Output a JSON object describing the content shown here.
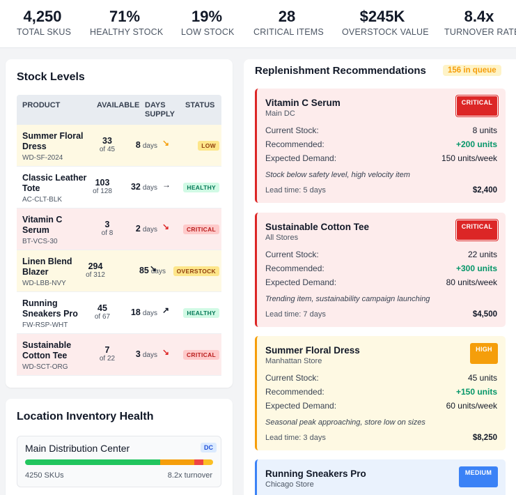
{
  "kpis": [
    {
      "value": "4,250",
      "label": "TOTAL SKUS"
    },
    {
      "value": "71%",
      "label": "HEALTHY STOCK"
    },
    {
      "value": "19%",
      "label": "LOW STOCK"
    },
    {
      "value": "28",
      "label": "CRITICAL ITEMS"
    },
    {
      "value": "$245K",
      "label": "OVERSTOCK VALUE"
    },
    {
      "value": "8.4x",
      "label": "TURNOVER RATE"
    }
  ],
  "stock_levels": {
    "title": "Stock Levels",
    "headers": {
      "product": "PRODUCT",
      "available": "AVAILABLE",
      "days_supply_1": "DAYS",
      "days_supply_2": "SUPPLY",
      "status": "STATUS"
    },
    "rows": [
      {
        "name": "Summer Floral Dress",
        "sku": "WD-SF-2024",
        "available": "33",
        "of": "of 45",
        "days": "8",
        "days_unit": "days",
        "trend": "↘",
        "status": "LOW",
        "status_key": "low",
        "trend_color": "#f59e0b"
      },
      {
        "name": "Classic Leather Tote",
        "sku": "AC-CLT-BLK",
        "available": "103",
        "of": "of 128",
        "days": "32",
        "days_unit": "days",
        "trend": "→",
        "status": "HEALTHY",
        "status_key": "healthy",
        "trend_color": "#111827"
      },
      {
        "name": "Vitamin C Serum",
        "sku": "BT-VCS-30",
        "available": "3",
        "of": "of 8",
        "days": "2",
        "days_unit": "days",
        "trend": "↘",
        "status": "CRITICAL",
        "status_key": "critical",
        "trend_color": "#dc2626"
      },
      {
        "name": "Linen Blend Blazer",
        "sku": "WD-LBB-NVY",
        "available": "294",
        "of": "of 312",
        "days": "85",
        "days_unit": "days",
        "trend": "↘",
        "status": "OVERSTOCK",
        "status_key": "overstock",
        "trend_color": "#111827"
      },
      {
        "name": "Running Sneakers Pro",
        "sku": "FW-RSP-WHT",
        "available": "45",
        "of": "of 67",
        "days": "18",
        "days_unit": "days",
        "trend": "↗",
        "status": "HEALTHY",
        "status_key": "healthy",
        "trend_color": "#111827"
      },
      {
        "name": "Sustainable Cotton Tee",
        "sku": "WD-SCT-ORG",
        "available": "7",
        "of": "of 22",
        "days": "3",
        "days_unit": "days",
        "trend": "↘",
        "status": "CRITICAL",
        "status_key": "critical",
        "trend_color": "#dc2626"
      }
    ]
  },
  "location_health": {
    "title": "Location Inventory Health",
    "locations": [
      {
        "name": "Main Distribution Center",
        "tag": "DC",
        "skus": "4250 SKUs",
        "turnover": "8.2x turnover",
        "segments": [
          {
            "share": 0.72,
            "color": "#22c55e"
          },
          {
            "share": 0.18,
            "color": "#f59e0b"
          },
          {
            "share": 0.05,
            "color": "#ef4444"
          },
          {
            "share": 0.05,
            "color": "#fbbf24"
          }
        ]
      }
    ]
  },
  "replenishment": {
    "title": "Replenishment Recommendations",
    "queue": "156 in queue",
    "labels": {
      "current": "Current Stock:",
      "recommended": "Recommended:",
      "demand": "Expected Demand:"
    },
    "items": [
      {
        "name": "Vitamin C Serum",
        "location": "Main DC",
        "priority": "CRITICAL",
        "priority_key": "critical",
        "current": "8 units",
        "recommended": "+200 units",
        "demand": "150 units/week",
        "note": "Stock below safety level, high velocity item",
        "lead": "Lead time: 5 days",
        "cost": "$2,400"
      },
      {
        "name": "Sustainable Cotton Tee",
        "location": "All Stores",
        "priority": "CRITICAL",
        "priority_key": "critical",
        "current": "22 units",
        "recommended": "+300 units",
        "demand": "80 units/week",
        "note": "Trending item, sustainability campaign launching",
        "lead": "Lead time: 7 days",
        "cost": "$4,500"
      },
      {
        "name": "Summer Floral Dress",
        "location": "Manhattan Store",
        "priority": "HIGH",
        "priority_key": "high",
        "current": "45 units",
        "recommended": "+150 units",
        "demand": "60 units/week",
        "note": "Seasonal peak approaching, store low on sizes",
        "lead": "Lead time: 3 days",
        "cost": "$8,250"
      },
      {
        "name": "Running Sneakers Pro",
        "location": "Chicago Store",
        "priority": "MEDIUM",
        "priority_key": "medium"
      }
    ]
  }
}
